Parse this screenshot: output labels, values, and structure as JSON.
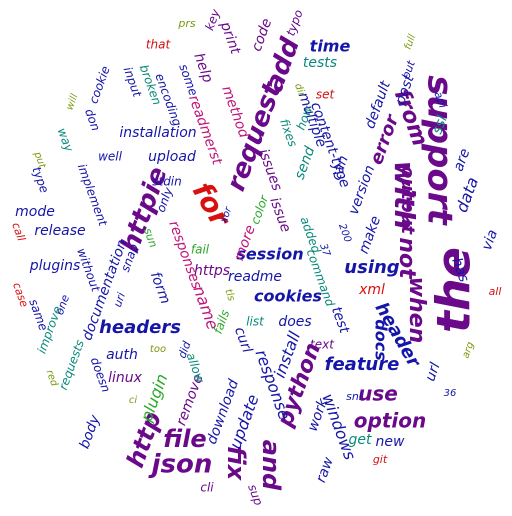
{
  "word_cloud": {
    "colors": {
      "navy": "#1515a8",
      "purple": "#6a0a8a",
      "red": "#d81010",
      "magenta": "#c0147a",
      "teal": "#0a8a7a",
      "green": "#2aa82a",
      "olive": "#7a9a10"
    },
    "words": [
      {
        "text": "the",
        "color": "purple",
        "weight": 46,
        "rot": -90
      },
      {
        "text": "support",
        "color": "purple",
        "weight": 34,
        "rot": 90
      },
      {
        "text": "with",
        "color": "purple",
        "weight": 28,
        "rot": 90
      },
      {
        "text": "not",
        "color": "purple",
        "weight": 22,
        "rot": 90
      },
      {
        "text": "when",
        "color": "purple",
        "weight": 22,
        "rot": 90
      },
      {
        "text": "for",
        "color": "red",
        "weight": 28,
        "rot": 60
      },
      {
        "text": "request",
        "color": "purple",
        "weight": 26,
        "rot": -70
      },
      {
        "text": "add",
        "color": "purple",
        "weight": 26,
        "rot": -70
      },
      {
        "text": "httpie",
        "color": "purple",
        "weight": 26,
        "rot": -70
      },
      {
        "text": "from",
        "color": "purple",
        "weight": 22,
        "rot": 70
      },
      {
        "text": "output",
        "color": "purple",
        "weight": 18,
        "rot": 90
      },
      {
        "text": "error",
        "color": "purple",
        "weight": 18,
        "rot": -70
      },
      {
        "text": "json",
        "color": "purple",
        "weight": 26,
        "rot": 0
      },
      {
        "text": "file",
        "color": "purple",
        "weight": 24,
        "rot": 0
      },
      {
        "text": "and",
        "color": "purple",
        "weight": 24,
        "rot": 90
      },
      {
        "text": "fix",
        "color": "purple",
        "weight": 24,
        "rot": 90
      },
      {
        "text": "http",
        "color": "purple",
        "weight": 24,
        "rot": -70
      },
      {
        "text": "python",
        "color": "purple",
        "weight": 22,
        "rot": -70
      },
      {
        "text": "use",
        "color": "purple",
        "weight": 20,
        "rot": 0
      },
      {
        "text": "option",
        "color": "purple",
        "weight": 20,
        "rot": 0
      },
      {
        "text": "headers",
        "color": "navy",
        "weight": 18,
        "rot": 0
      },
      {
        "text": "using",
        "color": "navy",
        "weight": 18,
        "rot": 0
      },
      {
        "text": "header",
        "color": "navy",
        "weight": 18,
        "rot": 60
      },
      {
        "text": "feature",
        "color": "navy",
        "weight": 18,
        "rot": 0
      },
      {
        "text": "time",
        "color": "navy",
        "weight": 16,
        "rot": 0
      },
      {
        "text": "cookies",
        "color": "navy",
        "weight": 16,
        "rot": 0
      },
      {
        "text": "session",
        "color": "navy",
        "weight": 16,
        "rot": 0
      },
      {
        "text": "response",
        "color": "navy",
        "weight": 16,
        "rot": 70
      },
      {
        "text": "update",
        "color": "navy",
        "weight": 16,
        "rot": -70
      },
      {
        "text": "install",
        "color": "navy",
        "weight": 16,
        "rot": -70
      },
      {
        "text": "windows",
        "color": "navy",
        "weight": 16,
        "rot": 70
      },
      {
        "text": "data",
        "color": "navy",
        "weight": 16,
        "rot": -70
      },
      {
        "text": "docs",
        "color": "navy",
        "weight": 16,
        "rot": 90
      },
      {
        "text": "make",
        "color": "navy",
        "weight": 14,
        "rot": -70
      },
      {
        "text": "does",
        "color": "navy",
        "weight": 14,
        "rot": 0
      },
      {
        "text": "download",
        "color": "navy",
        "weight": 14,
        "rot": -70
      },
      {
        "text": "upload",
        "color": "navy",
        "weight": 14,
        "rot": 0
      },
      {
        "text": "installation",
        "color": "navy",
        "weight": 14,
        "rot": 0
      },
      {
        "text": "documentation",
        "color": "navy",
        "weight": 14,
        "rot": -70
      },
      {
        "text": "readme",
        "color": "navy",
        "weight": 14,
        "rot": 0
      },
      {
        "text": "release",
        "color": "navy",
        "weight": 14,
        "rot": 0
      },
      {
        "text": "mode",
        "color": "navy",
        "weight": 14,
        "rot": 0
      },
      {
        "text": "plugins",
        "color": "navy",
        "weight": 14,
        "rot": 0
      },
      {
        "text": "body",
        "color": "navy",
        "weight": 14,
        "rot": -70
      },
      {
        "text": "auth",
        "color": "navy",
        "weight": 14,
        "rot": 0
      },
      {
        "text": "new",
        "color": "navy",
        "weight": 14,
        "rot": 0
      },
      {
        "text": "curl",
        "color": "navy",
        "weight": 14,
        "rot": 70
      },
      {
        "text": "version",
        "color": "navy",
        "weight": 14,
        "rot": -70
      },
      {
        "text": "default",
        "color": "navy",
        "weight": 14,
        "rot": -70
      },
      {
        "text": "post",
        "color": "navy",
        "weight": 14,
        "rot": -70
      },
      {
        "text": "can",
        "color": "navy",
        "weight": 14,
        "rot": -70
      },
      {
        "text": "work",
        "color": "navy",
        "weight": 14,
        "rot": -70
      },
      {
        "text": "test",
        "color": "navy",
        "weight": 14,
        "rot": 70
      },
      {
        "text": "url",
        "color": "navy",
        "weight": 14,
        "rot": -70
      },
      {
        "text": "via",
        "color": "navy",
        "weight": 14,
        "rot": -70
      },
      {
        "text": "are",
        "color": "navy",
        "weight": 14,
        "rot": -70
      },
      {
        "text": "has",
        "color": "navy",
        "weight": 14,
        "rot": 70
      },
      {
        "text": "multiple",
        "color": "navy",
        "weight": 14,
        "rot": 70
      },
      {
        "text": "content-type",
        "color": "navy",
        "weight": 14,
        "rot": 70
      },
      {
        "text": "form",
        "color": "navy",
        "weight": 14,
        "rot": 70
      },
      {
        "text": "raw",
        "color": "navy",
        "weight": 14,
        "rot": -70
      },
      {
        "text": "https",
        "color": "purple",
        "weight": 14,
        "rot": 0
      },
      {
        "text": "linux",
        "color": "purple",
        "weight": 14,
        "rot": 0
      },
      {
        "text": "name",
        "color": "magenta",
        "weight": 16,
        "rot": 70
      },
      {
        "text": "responses",
        "color": "magenta",
        "weight": 14,
        "rot": 70
      },
      {
        "text": "method",
        "color": "magenta",
        "weight": 14,
        "rot": 70
      },
      {
        "text": "readmerst",
        "color": "magenta",
        "weight": 14,
        "rot": 70
      },
      {
        "text": "code",
        "color": "purple",
        "weight": 14,
        "rot": -70
      },
      {
        "text": "print",
        "color": "purple",
        "weight": 14,
        "rot": 70
      },
      {
        "text": "help",
        "color": "purple",
        "weight": 14,
        "rot": 70
      },
      {
        "text": "key",
        "color": "purple",
        "weight": 12,
        "rot": -70
      },
      {
        "text": "typo",
        "color": "purple",
        "weight": 12,
        "rot": -70
      },
      {
        "text": "issue",
        "color": "purple",
        "weight": 14,
        "rot": 70
      },
      {
        "text": "issues",
        "color": "purple",
        "weight": 14,
        "rot": 70
      },
      {
        "text": "more",
        "color": "magenta",
        "weight": 14,
        "rot": -70
      },
      {
        "text": "remove",
        "color": "purple",
        "weight": 14,
        "rot": -70
      },
      {
        "text": "xml",
        "color": "red",
        "weight": 14,
        "rot": 0
      },
      {
        "text": "tests",
        "color": "teal",
        "weight": 14,
        "rot": 0
      },
      {
        "text": "send",
        "color": "teal",
        "weight": 14,
        "rot": -70
      },
      {
        "text": "how",
        "color": "teal",
        "weight": 12,
        "rot": -70
      },
      {
        "text": "fixes",
        "color": "teal",
        "weight": 12,
        "rot": 70
      },
      {
        "text": "added",
        "color": "teal",
        "weight": 12,
        "rot": 70
      },
      {
        "text": "command",
        "color": "teal",
        "weight": 12,
        "rot": 70
      },
      {
        "text": "requests",
        "color": "teal",
        "weight": 12,
        "rot": -70
      },
      {
        "text": "improve",
        "color": "teal",
        "weight": 12,
        "rot": -70
      },
      {
        "text": "broken",
        "color": "teal",
        "weight": 12,
        "rot": 70
      },
      {
        "text": "allow",
        "color": "teal",
        "weight": 12,
        "rot": 70
      },
      {
        "text": "list",
        "color": "teal",
        "weight": 12,
        "rot": 0
      },
      {
        "text": "get",
        "color": "teal",
        "weight": 14,
        "rot": 0
      },
      {
        "text": "ssl",
        "color": "teal",
        "weight": 14,
        "rot": -70
      },
      {
        "text": "way",
        "color": "teal",
        "weight": 12,
        "rot": 70
      },
      {
        "text": "plugin",
        "color": "green",
        "weight": 16,
        "rot": -70
      },
      {
        "text": "fails",
        "color": "green",
        "weight": 12,
        "rot": -70
      },
      {
        "text": "color",
        "color": "green",
        "weight": 12,
        "rot": -70
      },
      {
        "text": "fail",
        "color": "green",
        "weight": 12,
        "rot": 0
      },
      {
        "text": "sun",
        "color": "green",
        "weight": 11,
        "rot": 70
      },
      {
        "text": "cli",
        "color": "purple",
        "weight": 12,
        "rot": 0
      },
      {
        "text": "sup",
        "color": "purple",
        "weight": 12,
        "rot": 70
      },
      {
        "text": "text",
        "color": "purple",
        "weight": 12,
        "rot": 0
      },
      {
        "text": "set",
        "color": "red",
        "weight": 12,
        "rot": 0
      },
      {
        "text": "that",
        "color": "red",
        "weight": 12,
        "rot": 0
      },
      {
        "text": "git",
        "color": "red",
        "weight": 11,
        "rot": 0
      },
      {
        "text": "call",
        "color": "red",
        "weight": 11,
        "rot": 70
      },
      {
        "text": "case",
        "color": "red",
        "weight": 11,
        "rot": 70
      },
      {
        "text": "snap",
        "color": "navy",
        "weight": 12,
        "rot": -70
      },
      {
        "text": "only",
        "color": "navy",
        "weight": 12,
        "rot": -70
      },
      {
        "text": "stdin",
        "color": "navy",
        "weight": 12,
        "rot": 0
      },
      {
        "text": "well",
        "color": "navy",
        "weight": 12,
        "rot": 0
      },
      {
        "text": "input",
        "color": "navy",
        "weight": 12,
        "rot": 70
      },
      {
        "text": "cookie",
        "color": "navy",
        "weight": 12,
        "rot": -70
      },
      {
        "text": "encoding",
        "color": "navy",
        "weight": 12,
        "rot": 70
      },
      {
        "text": "implement",
        "color": "navy",
        "weight": 12,
        "rot": 70
      },
      {
        "text": "without",
        "color": "navy",
        "weight": 12,
        "rot": 70
      },
      {
        "text": "same",
        "color": "navy",
        "weight": 12,
        "rot": 70
      },
      {
        "text": "doesn",
        "color": "navy",
        "weight": 12,
        "rot": 70
      },
      {
        "text": "don",
        "color": "navy",
        "weight": 12,
        "rot": 70
      },
      {
        "text": "some",
        "color": "navy",
        "weight": 12,
        "rot": 70
      },
      {
        "text": "type",
        "color": "navy",
        "weight": 12,
        "rot": 70
      },
      {
        "text": "all",
        "color": "red",
        "weight": 11,
        "rot": 0
      },
      {
        "text": "uri",
        "color": "navy",
        "weight": 11,
        "rot": -70
      },
      {
        "text": "one",
        "color": "navy",
        "weight": 11,
        "rot": -70
      },
      {
        "text": "did",
        "color": "navy",
        "weight": 11,
        "rot": -70
      },
      {
        "text": "but",
        "color": "navy",
        "weight": 11,
        "rot": -70
      },
      {
        "text": "api",
        "color": "navy",
        "weight": 11,
        "rot": 70
      },
      {
        "text": "sni",
        "color": "navy",
        "weight": 11,
        "rot": 0
      },
      {
        "text": "xor",
        "color": "navy",
        "weight": 10,
        "rot": -70
      },
      {
        "text": "200",
        "color": "navy",
        "weight": 10,
        "rot": 70
      },
      {
        "text": "37",
        "color": "navy",
        "weight": 10,
        "rot": 70
      },
      {
        "text": "36",
        "color": "navy",
        "weight": 10,
        "rot": 0
      },
      {
        "text": "prs",
        "color": "olive",
        "weight": 11,
        "rot": 0
      },
      {
        "text": "full",
        "color": "olive",
        "weight": 10,
        "rot": -70
      },
      {
        "text": "too",
        "color": "olive",
        "weight": 10,
        "rot": 0
      },
      {
        "text": "arg",
        "color": "olive",
        "weight": 10,
        "rot": -70
      },
      {
        "text": "put",
        "color": "olive",
        "weight": 10,
        "rot": 70
      },
      {
        "text": "tls",
        "color": "olive",
        "weight": 10,
        "rot": 70
      },
      {
        "text": "will",
        "color": "olive",
        "weight": 10,
        "rot": -70
      },
      {
        "text": "dir",
        "color": "olive",
        "weight": 10,
        "rot": 70
      },
      {
        "text": "red",
        "color": "olive",
        "weight": 10,
        "rot": 70
      },
      {
        "text": "ci",
        "color": "olive",
        "weight": 10,
        "rot": 0
      }
    ]
  }
}
